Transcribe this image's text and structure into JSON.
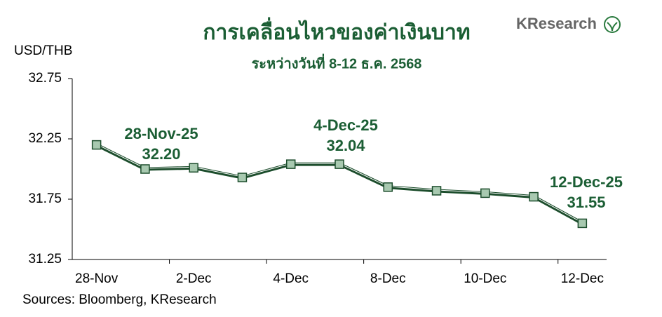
{
  "chart_data": {
    "type": "line",
    "title": "การเคลื่อนไหวของค่าเงินบาท",
    "subtitle": "ระหว่างวันที่ 8-12 ธ.ค. 2568",
    "y_label": "USD/THB",
    "source": "Sources: Bloomberg, KResearch",
    "logo": "KResearch",
    "categories": [
      "28-Nov",
      null,
      "2-Dec",
      null,
      "4-Dec",
      null,
      "8-Dec",
      null,
      "10-Dec",
      null,
      "12-Dec"
    ],
    "series": [
      {
        "name": "USD/THB",
        "color": "#1c4d2c",
        "marker_color": "#a8c9b0",
        "values": [
          32.2,
          32.0,
          32.01,
          31.93,
          32.04,
          32.04,
          31.85,
          31.82,
          31.8,
          31.77,
          31.55
        ]
      }
    ],
    "ylim": [
      31.25,
      32.75
    ],
    "yticks": [
      {
        "value": 31.25,
        "label": "31.25"
      },
      {
        "value": 31.75,
        "label": "31.75"
      },
      {
        "value": 32.25,
        "label": "32.25"
      },
      {
        "value": 32.75,
        "label": "32.75"
      }
    ],
    "annotations": [
      [
        "28-Nov-25",
        "32.20"
      ],
      [
        "4-Dec-25",
        "32.04"
      ],
      [
        "12-Dec-25",
        "31.55"
      ]
    ],
    "grid": false
  }
}
